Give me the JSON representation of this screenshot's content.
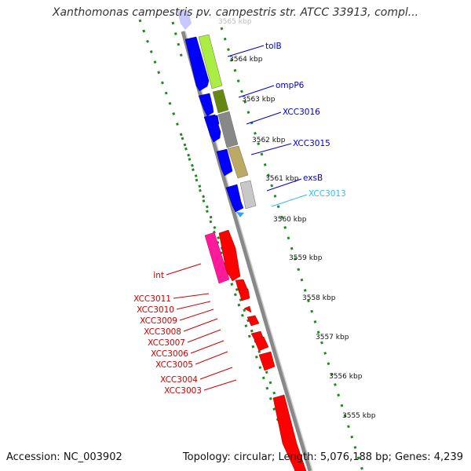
{
  "title": "Xanthomonas campestris pv. campestris str. ATCC 33913, compl...",
  "footer": {
    "accession": "Accession: NC_003902",
    "summary": "Topology: circular; Length: 5,076,188 bp; Genes: 4,239"
  },
  "colors": {
    "backbone": "#888888",
    "dotted_ring": "#1e8a1e",
    "forward_gene": "#0000ff",
    "reverse_gene": "#ff0000"
  },
  "ticks": [
    {
      "label": "3564 kbp"
    },
    {
      "label": "3563 kbp"
    },
    {
      "label": "3562 kbp"
    },
    {
      "label": "3561 kbp"
    },
    {
      "label": "3560 kbp"
    },
    {
      "label": "3559 kbp"
    },
    {
      "label": "3558 kbp"
    },
    {
      "label": "3557 kbp"
    },
    {
      "label": "3556 kbp"
    },
    {
      "label": "3555 kbp"
    }
  ],
  "genes": [
    {
      "label": "tolB",
      "color": "#0000cc"
    },
    {
      "label": "ompP6",
      "color": "#0000cc"
    },
    {
      "label": "XCC3016",
      "color": "#0000cc"
    },
    {
      "label": "XCC3015",
      "color": "#0000cc"
    },
    {
      "label": "exsB",
      "color": "#0000cc"
    },
    {
      "label": "XCC3013",
      "color": "#33bbee"
    },
    {
      "label": "int",
      "color": "#cc0000"
    },
    {
      "label": "XCC3011",
      "color": "#cc0000"
    },
    {
      "label": "XCC3010",
      "color": "#cc0000"
    },
    {
      "label": "XCC3009",
      "color": "#cc0000"
    },
    {
      "label": "XCC3008",
      "color": "#cc0000"
    },
    {
      "label": "XCC3007",
      "color": "#cc0000"
    },
    {
      "label": "XCC3006",
      "color": "#cc0000"
    },
    {
      "label": "XCC3005",
      "color": "#cc0000"
    },
    {
      "label": "XCC3004",
      "color": "#cc0000"
    },
    {
      "label": "XCC3003",
      "color": "#cc0000"
    }
  ]
}
